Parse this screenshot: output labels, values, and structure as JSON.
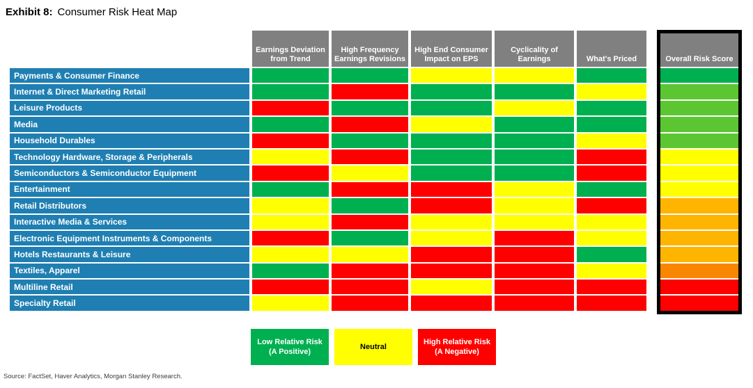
{
  "title": {
    "prefix": "Exhibit 8:",
    "text": "Consumer Risk Heat Map"
  },
  "source": "Source: FactSet, Haver Analytics, Morgan Stanley Research.",
  "colors": {
    "green": "#00B050",
    "light_green": "#5CC632",
    "yellow": "#FFFF00",
    "amber": "#FFB400",
    "orange": "#F98600",
    "red": "#FF0000",
    "row_label_blue": "#1F7FB2",
    "header_gray": "#808080",
    "frame_black": "#000000"
  },
  "chart_data": {
    "type": "heatmap",
    "title": "Consumer Risk Heat Map",
    "columns": [
      "Earnings Deviation from Trend",
      "High Frequency Earnings Revisions",
      "High End Consumer Impact on EPS",
      "Cyclicality of Earnings",
      "What's Priced",
      "Overall Risk Score"
    ],
    "color_scale": {
      "green": "Low Relative Risk (A Positive)",
      "yellow": "Neutral",
      "red": "High Relative Risk (A Negative)",
      "overall_gradient": [
        "green",
        "light_green",
        "yellow",
        "amber",
        "orange",
        "red"
      ]
    },
    "rows": [
      {
        "label": "Payments & Consumer Finance",
        "cells": [
          "green",
          "green",
          "yellow",
          "yellow",
          "green"
        ],
        "overall": "green"
      },
      {
        "label": "Internet & Direct Marketing Retail",
        "cells": [
          "green",
          "red",
          "green",
          "green",
          "yellow"
        ],
        "overall": "light_green"
      },
      {
        "label": "Leisure Products",
        "cells": [
          "red",
          "green",
          "green",
          "yellow",
          "green"
        ],
        "overall": "light_green"
      },
      {
        "label": "Media",
        "cells": [
          "green",
          "red",
          "yellow",
          "green",
          "green"
        ],
        "overall": "light_green"
      },
      {
        "label": "Household Durables",
        "cells": [
          "red",
          "green",
          "green",
          "green",
          "yellow"
        ],
        "overall": "light_green"
      },
      {
        "label": "Technology Hardware, Storage & Peripherals",
        "cells": [
          "yellow",
          "red",
          "green",
          "green",
          "red"
        ],
        "overall": "yellow"
      },
      {
        "label": "Semiconductors & Semiconductor Equipment",
        "cells": [
          "red",
          "yellow",
          "green",
          "green",
          "red"
        ],
        "overall": "yellow"
      },
      {
        "label": "Entertainment",
        "cells": [
          "green",
          "red",
          "red",
          "yellow",
          "green"
        ],
        "overall": "yellow"
      },
      {
        "label": "Retail Distributors",
        "cells": [
          "yellow",
          "green",
          "red",
          "yellow",
          "red"
        ],
        "overall": "amber"
      },
      {
        "label": "Interactive Media & Services",
        "cells": [
          "yellow",
          "red",
          "yellow",
          "yellow",
          "yellow"
        ],
        "overall": "amber"
      },
      {
        "label": "Electronic Equipment Instruments & Components",
        "cells": [
          "red",
          "green",
          "yellow",
          "red",
          "yellow"
        ],
        "overall": "amber"
      },
      {
        "label": "Hotels Restaurants & Leisure",
        "cells": [
          "yellow",
          "yellow",
          "red",
          "red",
          "green"
        ],
        "overall": "amber"
      },
      {
        "label": "Textiles, Apparel",
        "cells": [
          "green",
          "red",
          "red",
          "red",
          "yellow"
        ],
        "overall": "orange"
      },
      {
        "label": "Multiline Retail",
        "cells": [
          "red",
          "red",
          "yellow",
          "red",
          "red"
        ],
        "overall": "red"
      },
      {
        "label": "Specialty Retail",
        "cells": [
          "yellow",
          "red",
          "red",
          "red",
          "red"
        ],
        "overall": "red"
      }
    ]
  },
  "legend": [
    {
      "label": "Low Relative Risk (A Positive)",
      "color": "green",
      "text_color": "#ffffff"
    },
    {
      "label": "Neutral",
      "color": "yellow",
      "text_color": "#000000"
    },
    {
      "label": "High Relative Risk (A Negative)",
      "color": "red",
      "text_color": "#ffffff"
    }
  ]
}
